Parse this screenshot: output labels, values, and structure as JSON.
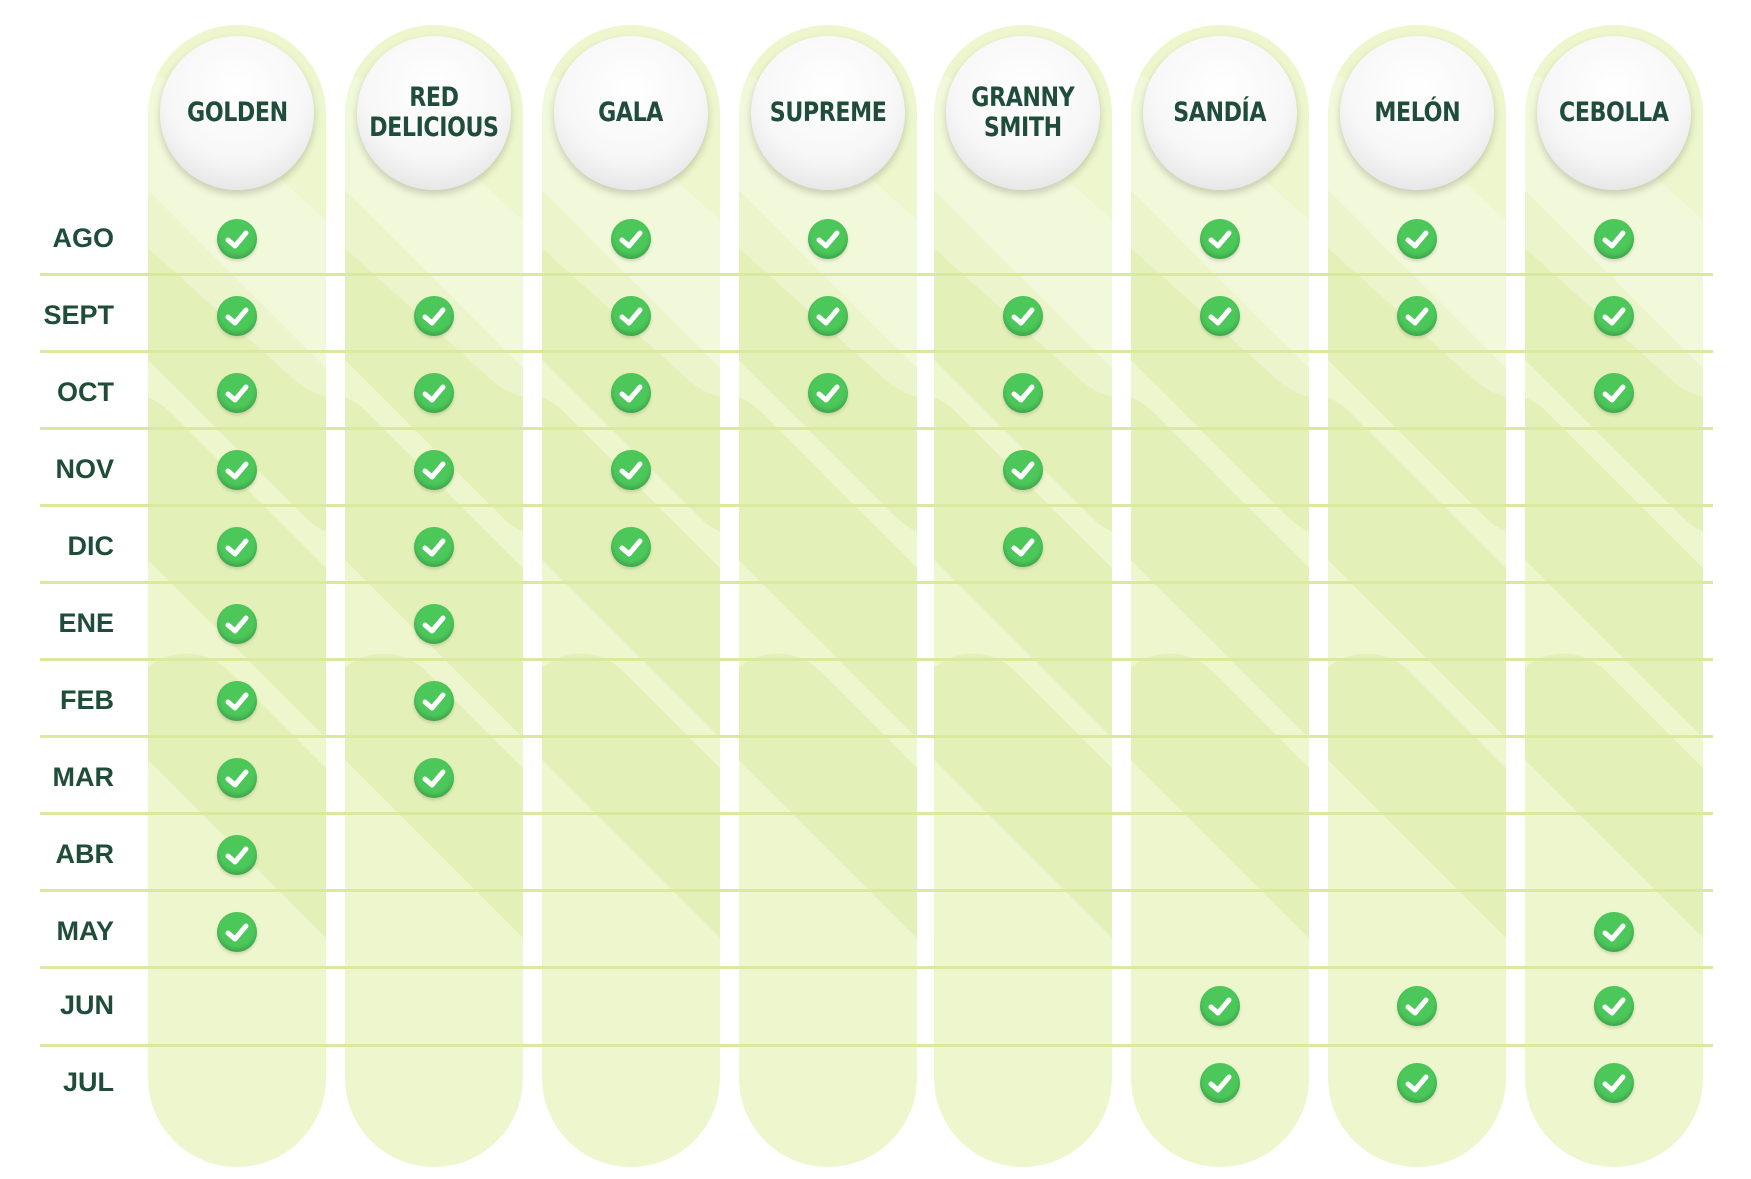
{
  "columns": [
    "GOLDEN",
    "RED\nDELICIOUS",
    "GALA",
    "SUPREME",
    "GRANNY\nSMITH",
    "SANDÍA",
    "MELÓN",
    "CEBOLLA"
  ],
  "months": [
    "AGO",
    "SEPT",
    "OCT",
    "NOV",
    "DIC",
    "ENE",
    "FEB",
    "MAR",
    "ABR",
    "MAY",
    "JUN",
    "JUL"
  ],
  "availability": [
    [
      true,
      false,
      true,
      true,
      false,
      true,
      true,
      true
    ],
    [
      true,
      true,
      true,
      true,
      true,
      true,
      true,
      true
    ],
    [
      true,
      true,
      true,
      true,
      true,
      false,
      false,
      true
    ],
    [
      true,
      true,
      true,
      false,
      true,
      false,
      false,
      false
    ],
    [
      true,
      true,
      true,
      false,
      true,
      false,
      false,
      false
    ],
    [
      true,
      true,
      false,
      false,
      false,
      false,
      false,
      false
    ],
    [
      true,
      true,
      false,
      false,
      false,
      false,
      false,
      false
    ],
    [
      true,
      true,
      false,
      false,
      false,
      false,
      false,
      false
    ],
    [
      true,
      false,
      false,
      false,
      false,
      false,
      false,
      false
    ],
    [
      true,
      false,
      false,
      false,
      false,
      false,
      false,
      true
    ],
    [
      false,
      false,
      false,
      false,
      false,
      true,
      true,
      true
    ],
    [
      false,
      false,
      false,
      false,
      false,
      true,
      true,
      true
    ]
  ],
  "icons": {
    "check": "check-circle-icon"
  },
  "colors": {
    "column_bg": "#edf6cc",
    "row_line": "#d9ea9e",
    "check": "#4cc85a",
    "text": "#1f4d3a"
  }
}
